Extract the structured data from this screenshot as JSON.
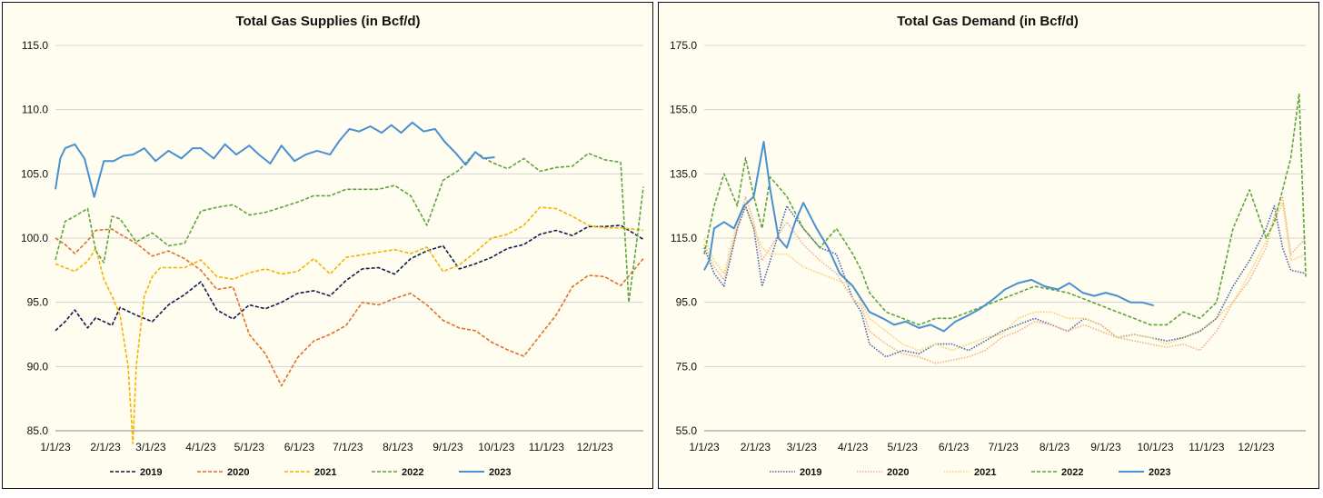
{
  "chart_data": [
    {
      "type": "line",
      "title": "Total Gas Supplies (in Bcf/d)",
      "xlabel": "",
      "ylabel": "",
      "x_ticks": [
        "1/1/23",
        "2/1/23",
        "3/1/23",
        "4/1/23",
        "5/1/23",
        "6/1/23",
        "7/1/23",
        "8/1/23",
        "9/1/23",
        "10/1/23",
        "11/1/23",
        "12/1/23"
      ],
      "x_day_of_year": [
        0,
        31,
        59,
        90,
        120,
        151,
        181,
        212,
        243,
        273,
        304,
        334
      ],
      "x_range_days": [
        0,
        364
      ],
      "y_ticks": [
        "85.0",
        "90.0",
        "95.0",
        "100.0",
        "105.0",
        "110.0",
        "115.0"
      ],
      "ylim": [
        85,
        115
      ],
      "grid": "horizontal",
      "legend_position": "bottom",
      "series": [
        {
          "name": "2019",
          "color": "#0e1a4a",
          "dash": "4 2",
          "x": [
            0,
            6,
            12,
            20,
            25,
            35,
            40,
            50,
            60,
            70,
            80,
            90,
            100,
            110,
            120,
            130,
            140,
            150,
            160,
            170,
            180,
            190,
            200,
            210,
            220,
            230,
            240,
            250,
            260,
            270,
            280,
            290,
            300,
            310,
            320,
            330,
            340,
            350,
            364
          ],
          "values": [
            92.8,
            93.5,
            94.4,
            93.0,
            93.8,
            93.2,
            94.6,
            94.0,
            93.5,
            94.8,
            95.6,
            96.6,
            94.4,
            93.7,
            94.8,
            94.5,
            95.0,
            95.7,
            95.9,
            95.5,
            96.7,
            97.6,
            97.7,
            97.2,
            98.4,
            99.0,
            99.4,
            97.6,
            98.0,
            98.5,
            99.2,
            99.5,
            100.3,
            100.6,
            100.2,
            100.9,
            100.9,
            101.0,
            99.9
          ]
        },
        {
          "name": "2020",
          "color": "#e0702a",
          "dash": "4 2",
          "x": [
            0,
            6,
            12,
            20,
            25,
            35,
            40,
            50,
            60,
            70,
            80,
            90,
            100,
            110,
            120,
            130,
            140,
            150,
            160,
            170,
            180,
            190,
            200,
            210,
            220,
            230,
            240,
            250,
            260,
            270,
            280,
            290,
            300,
            310,
            320,
            330,
            340,
            350,
            364
          ],
          "values": [
            100.0,
            99.5,
            98.8,
            99.8,
            100.6,
            100.7,
            100.3,
            99.6,
            98.6,
            99.0,
            98.4,
            97.5,
            96.0,
            96.2,
            92.5,
            91.0,
            88.5,
            90.7,
            92.0,
            92.5,
            93.2,
            95.0,
            94.8,
            95.3,
            95.7,
            94.8,
            93.6,
            93.0,
            92.8,
            91.9,
            91.3,
            90.8,
            92.4,
            94.0,
            96.2,
            97.1,
            97.0,
            96.3,
            98.4
          ]
        },
        {
          "name": "2021",
          "color": "#f2b400",
          "dash": "4 2",
          "x": [
            0,
            6,
            12,
            20,
            25,
            30,
            35,
            40,
            45,
            48,
            50,
            55,
            60,
            65,
            70,
            80,
            90,
            100,
            110,
            120,
            130,
            140,
            150,
            160,
            170,
            180,
            190,
            200,
            210,
            220,
            230,
            240,
            250,
            260,
            270,
            280,
            290,
            300,
            310,
            320,
            330,
            340,
            350,
            364
          ],
          "values": [
            98.0,
            97.7,
            97.4,
            98.2,
            99.2,
            96.8,
            95.5,
            94.0,
            90.0,
            84.0,
            90.0,
            95.5,
            97.0,
            97.7,
            97.7,
            97.7,
            98.3,
            97.0,
            96.8,
            97.3,
            97.6,
            97.2,
            97.4,
            98.4,
            97.2,
            98.5,
            98.7,
            98.9,
            99.1,
            98.8,
            99.3,
            97.4,
            97.9,
            98.9,
            100.0,
            100.3,
            101.0,
            102.4,
            102.3,
            101.7,
            101.0,
            100.8,
            100.8,
            100.6
          ]
        },
        {
          "name": "2022",
          "color": "#5fa33d",
          "dash": "4 2",
          "x": [
            0,
            6,
            12,
            20,
            25,
            30,
            35,
            40,
            45,
            50,
            60,
            70,
            80,
            90,
            100,
            110,
            120,
            130,
            140,
            150,
            160,
            170,
            180,
            190,
            200,
            210,
            220,
            230,
            240,
            250,
            260,
            270,
            280,
            290,
            300,
            310,
            320,
            330,
            340,
            350,
            355,
            360,
            364
          ],
          "values": [
            98.3,
            101.3,
            101.7,
            102.3,
            99.0,
            98.1,
            101.7,
            101.5,
            100.6,
            99.7,
            100.4,
            99.4,
            99.6,
            102.1,
            102.4,
            102.6,
            101.8,
            102.0,
            102.4,
            102.8,
            103.3,
            103.3,
            103.8,
            103.8,
            103.8,
            104.1,
            103.3,
            101.0,
            104.5,
            105.3,
            106.7,
            105.9,
            105.4,
            106.2,
            105.2,
            105.5,
            105.6,
            106.6,
            106.1,
            105.9,
            95.0,
            99.8,
            104.0
          ]
        },
        {
          "name": "2023",
          "color": "#4a90d0",
          "dash": "",
          "x": [
            0,
            3,
            6,
            12,
            18,
            24,
            30,
            36,
            42,
            48,
            55,
            62,
            70,
            78,
            85,
            90,
            98,
            105,
            112,
            120,
            126,
            133,
            140,
            148,
            155,
            162,
            170,
            176,
            182,
            188,
            195,
            202,
            208,
            214,
            221,
            228,
            235,
            241,
            248,
            254,
            260,
            265,
            272
          ],
          "values": [
            103.8,
            106.2,
            107.0,
            107.3,
            106.2,
            103.2,
            106.0,
            106.0,
            106.4,
            106.5,
            107.0,
            106.0,
            106.8,
            106.2,
            107.0,
            107.0,
            106.2,
            107.3,
            106.5,
            107.2,
            106.5,
            105.8,
            107.2,
            106.0,
            106.5,
            106.8,
            106.5,
            107.6,
            108.5,
            108.3,
            108.7,
            108.2,
            108.8,
            108.2,
            109.0,
            108.3,
            108.5,
            107.5,
            106.6,
            105.7,
            106.7,
            106.2,
            106.3
          ]
        }
      ]
    },
    {
      "type": "line",
      "title": "Total Gas Demand (in Bcf/d)",
      "xlabel": "",
      "ylabel": "",
      "x_ticks": [
        "1/1/23",
        "2/1/23",
        "3/1/23",
        "4/1/23",
        "5/1/23",
        "6/1/23",
        "7/1/23",
        "8/1/23",
        "9/1/23",
        "10/1/23",
        "11/1/23",
        "12/1/23"
      ],
      "x_day_of_year": [
        0,
        31,
        59,
        90,
        120,
        151,
        181,
        212,
        243,
        273,
        304,
        334
      ],
      "x_range_days": [
        0,
        364
      ],
      "y_ticks": [
        "55.0",
        "75.0",
        "95.0",
        "115.0",
        "135.0",
        "155.0",
        "175.0"
      ],
      "ylim": [
        55,
        175
      ],
      "grid": "horizontal",
      "legend_position": "bottom",
      "series": [
        {
          "name": "2019",
          "color": "#4a60a8",
          "dash": "1.5 1.5",
          "x": [
            0,
            6,
            12,
            20,
            25,
            30,
            35,
            40,
            50,
            60,
            70,
            80,
            90,
            95,
            100,
            110,
            120,
            130,
            140,
            150,
            160,
            170,
            180,
            190,
            200,
            210,
            220,
            230,
            240,
            250,
            260,
            270,
            280,
            290,
            300,
            310,
            320,
            330,
            340,
            345,
            350,
            355,
            364
          ],
          "values": [
            112,
            104,
            100,
            118,
            125,
            118,
            100,
            108,
            125,
            118,
            112,
            110,
            96,
            92,
            82,
            78,
            80,
            79,
            82,
            82,
            80,
            83,
            86,
            88,
            90,
            88,
            86,
            90,
            88,
            84,
            85,
            84,
            83,
            84,
            86,
            90,
            100,
            108,
            118,
            125,
            112,
            105,
            104
          ]
        },
        {
          "name": "2020",
          "color": "#f0b08a",
          "dash": "1.5 1.5",
          "x": [
            0,
            6,
            12,
            20,
            25,
            30,
            35,
            40,
            50,
            60,
            70,
            80,
            90,
            95,
            100,
            110,
            120,
            130,
            140,
            150,
            160,
            170,
            180,
            190,
            200,
            210,
            220,
            230,
            240,
            250,
            260,
            270,
            280,
            290,
            300,
            310,
            320,
            330,
            340,
            345,
            350,
            355,
            364
          ],
          "values": [
            113,
            106,
            102,
            118,
            128,
            120,
            108,
            112,
            120,
            113,
            108,
            104,
            96,
            94,
            86,
            82,
            79,
            78,
            76,
            77,
            78,
            80,
            84,
            86,
            89,
            88,
            86,
            88,
            86,
            84,
            83,
            82,
            81,
            82,
            80,
            86,
            95,
            102,
            112,
            122,
            128,
            110,
            115
          ]
        },
        {
          "name": "2021",
          "color": "#f5d070",
          "dash": "1.5 1.5",
          "x": [
            0,
            6,
            12,
            20,
            25,
            30,
            35,
            40,
            50,
            60,
            70,
            80,
            90,
            95,
            100,
            110,
            120,
            130,
            140,
            150,
            160,
            170,
            180,
            190,
            200,
            210,
            220,
            230,
            240,
            250,
            260,
            270,
            280,
            290,
            300,
            310,
            320,
            330,
            340,
            345,
            350,
            355,
            364
          ],
          "values": [
            115,
            108,
            104,
            120,
            125,
            118,
            112,
            110,
            110,
            106,
            104,
            102,
            100,
            95,
            90,
            86,
            82,
            80,
            82,
            80,
            82,
            84,
            85,
            90,
            92,
            92,
            90,
            90,
            88,
            84,
            85,
            84,
            82,
            84,
            86,
            90,
            95,
            104,
            114,
            120,
            126,
            108,
            110
          ]
        },
        {
          "name": "2022",
          "color": "#5fa33d",
          "dash": "4 2",
          "x": [
            0,
            6,
            12,
            20,
            25,
            30,
            35,
            40,
            50,
            60,
            70,
            80,
            90,
            95,
            100,
            110,
            120,
            130,
            140,
            150,
            160,
            170,
            180,
            190,
            200,
            210,
            220,
            230,
            240,
            250,
            260,
            270,
            280,
            290,
            300,
            310,
            320,
            330,
            340,
            345,
            350,
            355,
            360,
            364
          ],
          "values": [
            110,
            125,
            135,
            125,
            140,
            128,
            118,
            134,
            128,
            118,
            112,
            118,
            110,
            105,
            98,
            92,
            90,
            88,
            90,
            90,
            92,
            94,
            96,
            98,
            100,
            99,
            98,
            96,
            94,
            92,
            90,
            88,
            88,
            92,
            90,
            95,
            118,
            130,
            115,
            120,
            130,
            140,
            160,
            103
          ]
        },
        {
          "name": "2023",
          "color": "#4a90d0",
          "dash": "",
          "x": [
            0,
            3,
            6,
            12,
            18,
            24,
            30,
            36,
            40,
            45,
            50,
            55,
            60,
            68,
            75,
            82,
            90,
            95,
            100,
            108,
            115,
            122,
            130,
            137,
            145,
            152,
            160,
            167,
            175,
            182,
            190,
            198,
            206,
            214,
            221,
            229,
            236,
            243,
            250,
            258,
            265,
            272
          ],
          "values": [
            105,
            108,
            118,
            120,
            118,
            125,
            128,
            145,
            130,
            115,
            112,
            120,
            126,
            118,
            112,
            104,
            100,
            96,
            92,
            90,
            88,
            89,
            87,
            88,
            86,
            89,
            91,
            93,
            96,
            99,
            101,
            102,
            100,
            99,
            101,
            98,
            97,
            98,
            97,
            95,
            95,
            94
          ]
        }
      ]
    }
  ]
}
